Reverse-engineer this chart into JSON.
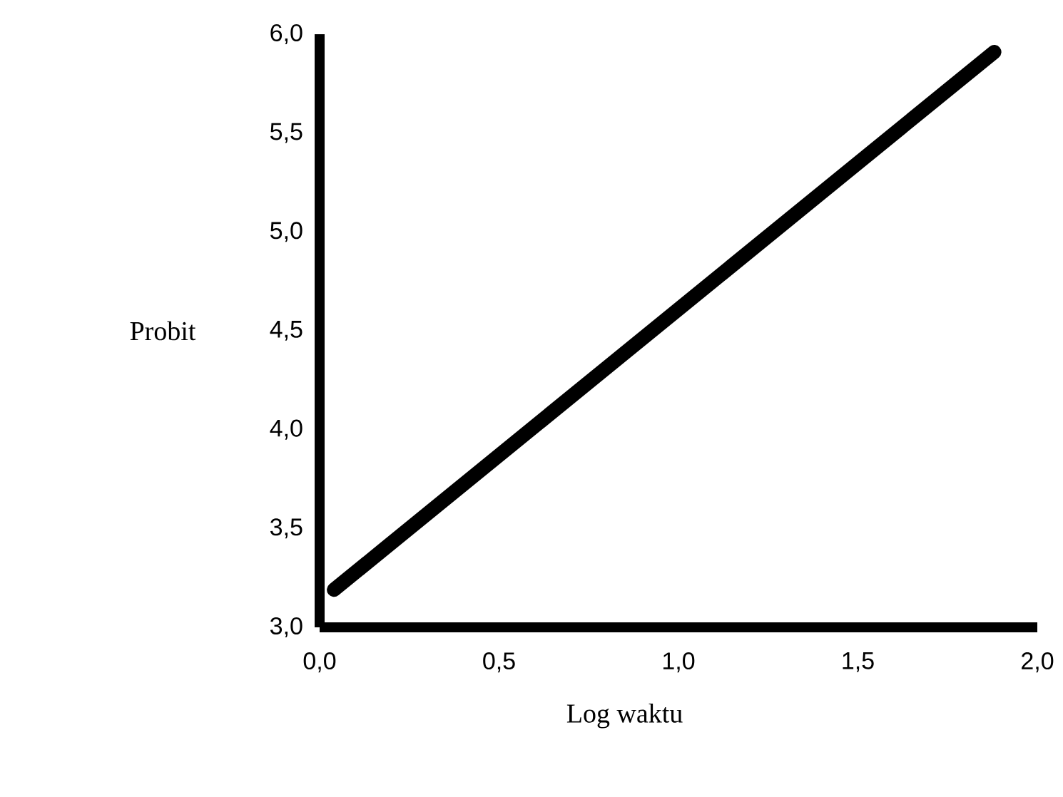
{
  "chart_data": {
    "type": "line",
    "xlabel": "Log waktu",
    "ylabel": "Probit",
    "x": [
      0.04,
      1.88
    ],
    "series": [
      {
        "color": "#000000",
        "values": [
          3.19,
          5.91
        ]
      }
    ],
    "xlim": [
      0,
      2
    ],
    "ylim": [
      3,
      6
    ],
    "xticks": [
      {
        "value": 0,
        "label": "0,0"
      },
      {
        "value": 0.5,
        "label": "0,5"
      },
      {
        "value": 1,
        "label": "1,0"
      },
      {
        "value": 1.5,
        "label": "1,5"
      },
      {
        "value": 2,
        "label": "2,0"
      }
    ],
    "yticks": [
      {
        "value": 3,
        "label": "3,0"
      },
      {
        "value": 3.5,
        "label": "3,5"
      },
      {
        "value": 4,
        "label": "4,0"
      },
      {
        "value": 4.5,
        "label": "4,5"
      },
      {
        "value": 5,
        "label": "5,0"
      },
      {
        "value": 5.5,
        "label": "5,5"
      },
      {
        "value": 6,
        "label": "6,0"
      }
    ],
    "grid": false,
    "marker": "none",
    "line_style": "solid"
  }
}
